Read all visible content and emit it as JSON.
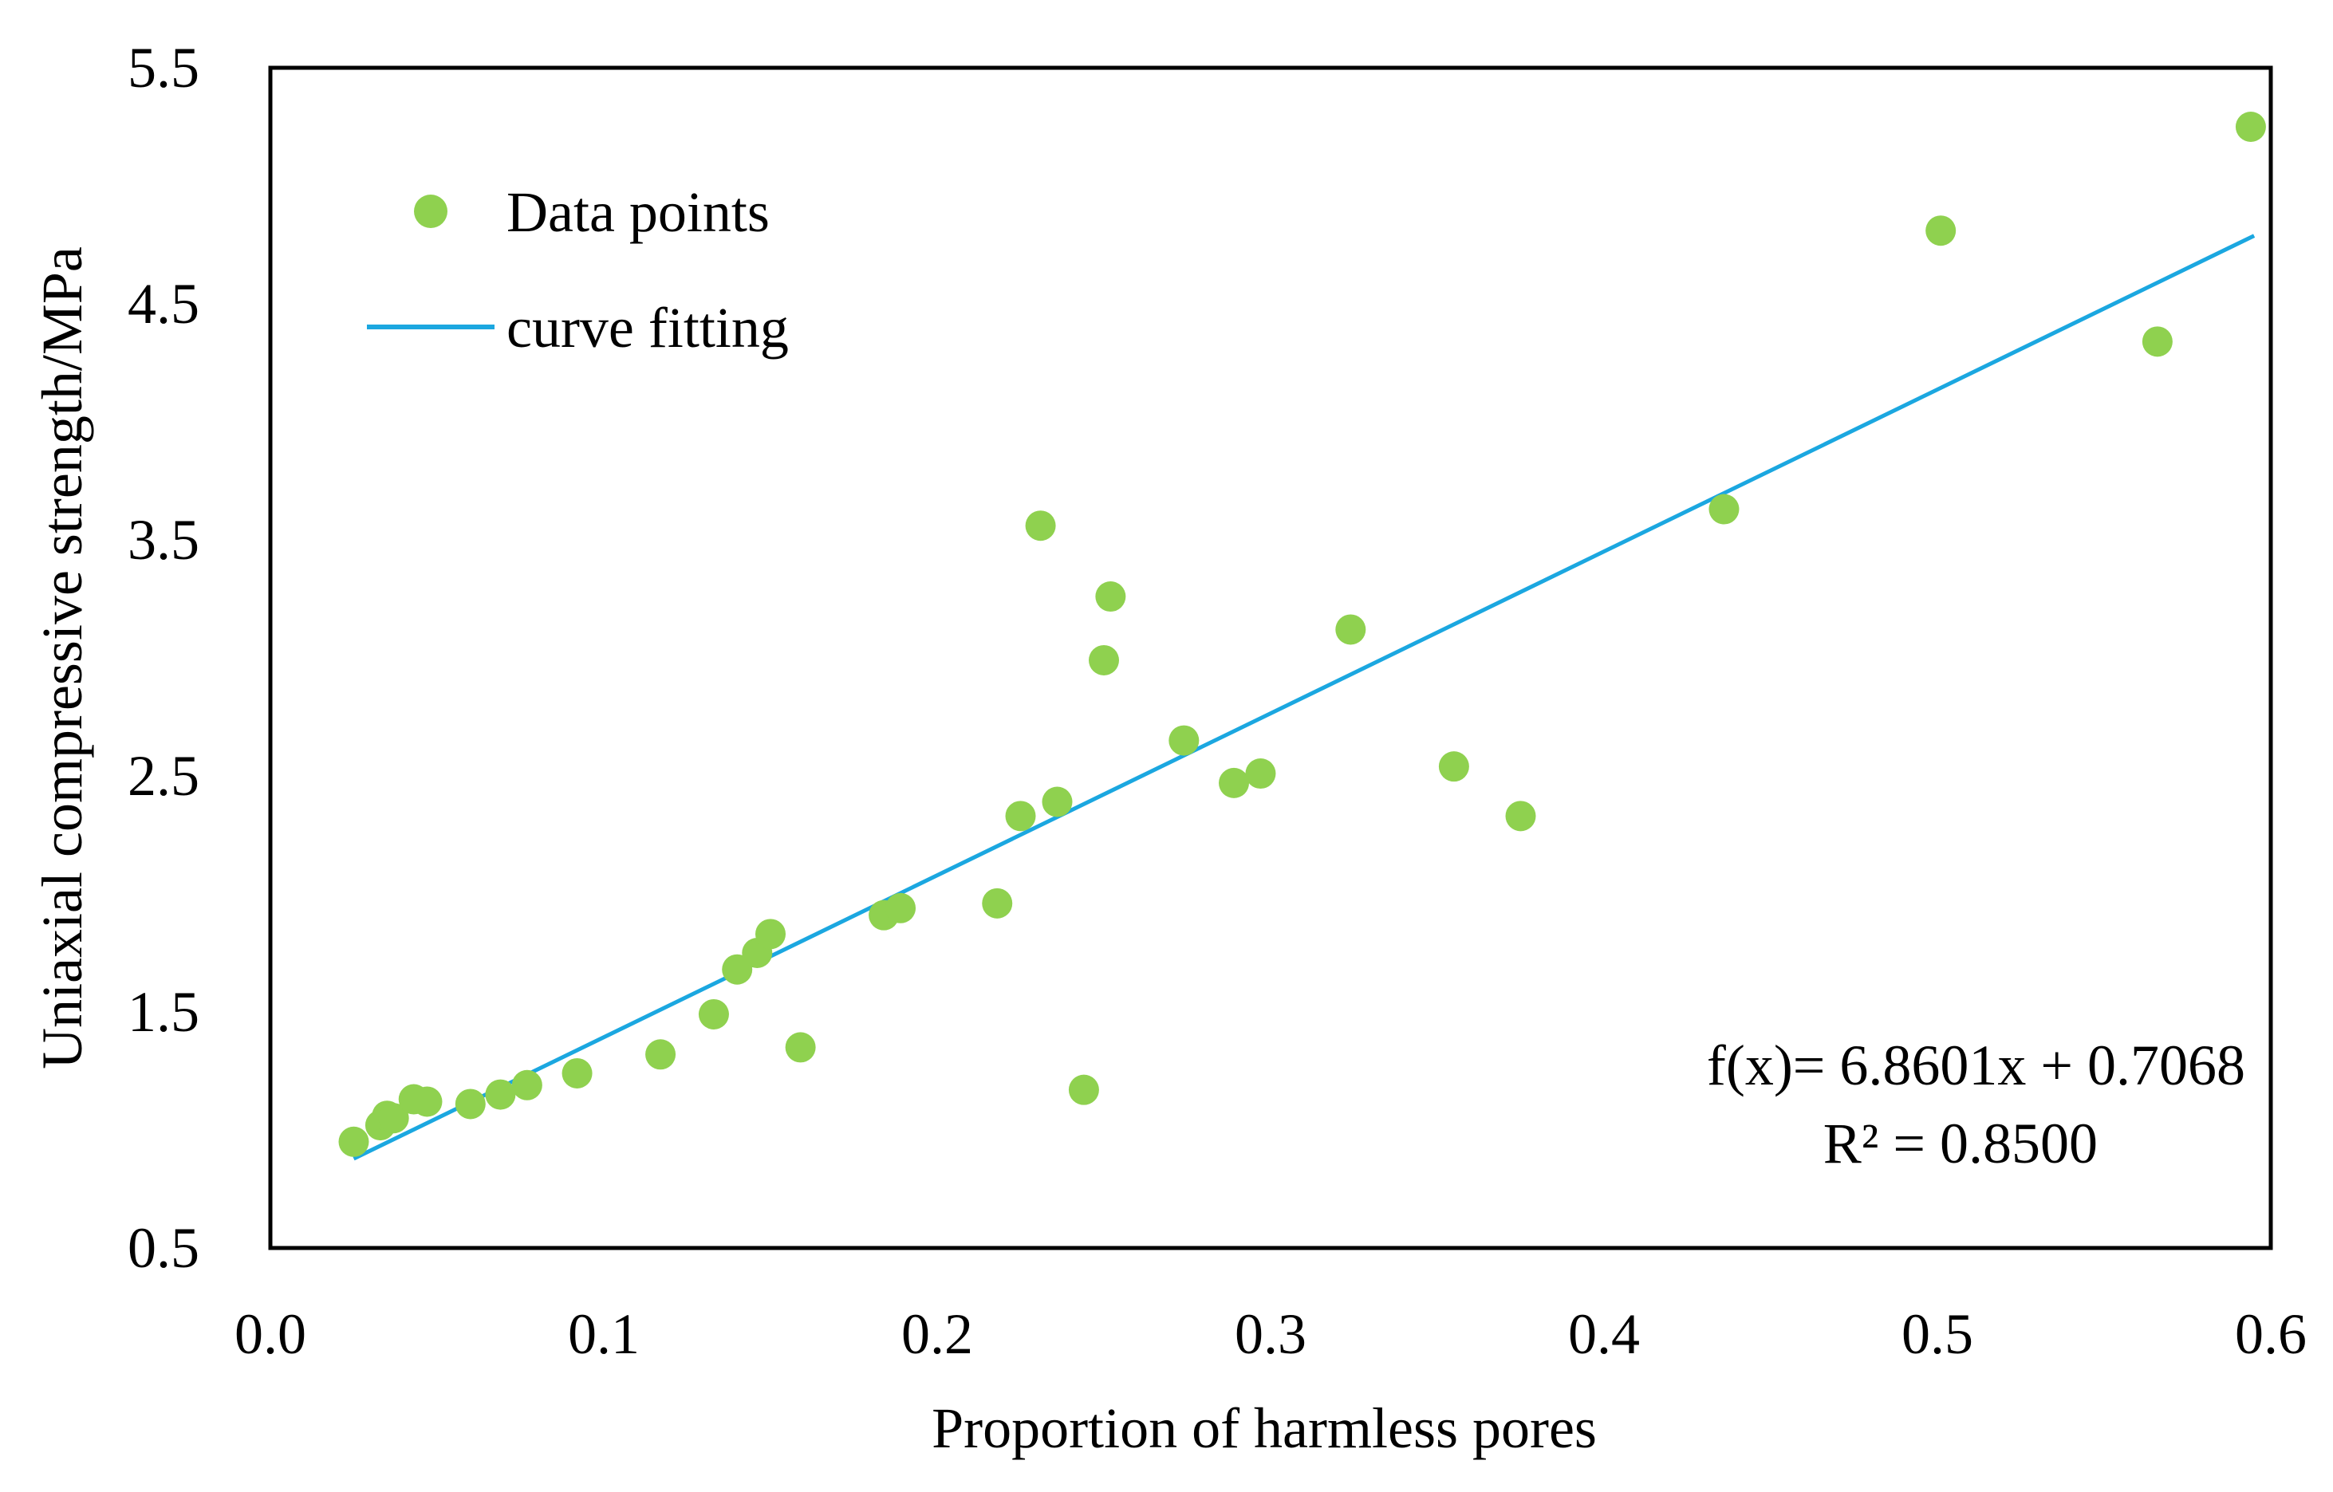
{
  "chart_data": {
    "type": "scatter",
    "title": "",
    "xlabel": "Proportion of harmless pores",
    "ylabel": "Uniaxial compressive strength/MPa",
    "xlim": [
      0.0,
      0.6
    ],
    "ylim": [
      0.5,
      5.5
    ],
    "x_ticks": [
      0.0,
      0.1,
      0.2,
      0.3,
      0.4,
      0.5,
      0.6
    ],
    "x_tick_labels": [
      "0.0",
      "0.1",
      "0.2",
      "0.3",
      "0.4",
      "0.5",
      "0.6"
    ],
    "y_ticks": [
      0.5,
      1.5,
      2.5,
      3.5,
      4.5,
      5.5
    ],
    "y_tick_labels": [
      "0.5",
      "1.5",
      "2.5",
      "3.5",
      "4.5",
      "5.5"
    ],
    "grid": false,
    "legend": {
      "position": "top-left",
      "entries": [
        {
          "label": "Data points",
          "marker": "circle",
          "color": "#8fd14f"
        },
        {
          "label": "curve fitting",
          "marker": "line",
          "color": "#1ba7e0"
        }
      ]
    },
    "series": [
      {
        "name": "Data points",
        "kind": "scatter",
        "color": "#8fd14f",
        "points": [
          {
            "x": 0.025,
            "y": 0.95
          },
          {
            "x": 0.033,
            "y": 1.02
          },
          {
            "x": 0.035,
            "y": 1.06
          },
          {
            "x": 0.037,
            "y": 1.05
          },
          {
            "x": 0.043,
            "y": 1.13
          },
          {
            "x": 0.047,
            "y": 1.12
          },
          {
            "x": 0.06,
            "y": 1.11
          },
          {
            "x": 0.069,
            "y": 1.15
          },
          {
            "x": 0.077,
            "y": 1.19
          },
          {
            "x": 0.092,
            "y": 1.24
          },
          {
            "x": 0.117,
            "y": 1.32
          },
          {
            "x": 0.133,
            "y": 1.49
          },
          {
            "x": 0.14,
            "y": 1.68
          },
          {
            "x": 0.146,
            "y": 1.75
          },
          {
            "x": 0.15,
            "y": 1.83
          },
          {
            "x": 0.159,
            "y": 1.35
          },
          {
            "x": 0.184,
            "y": 1.91
          },
          {
            "x": 0.189,
            "y": 1.94
          },
          {
            "x": 0.218,
            "y": 1.96
          },
          {
            "x": 0.225,
            "y": 2.33
          },
          {
            "x": 0.231,
            "y": 3.56
          },
          {
            "x": 0.236,
            "y": 2.39
          },
          {
            "x": 0.244,
            "y": 1.17
          },
          {
            "x": 0.25,
            "y": 2.99
          },
          {
            "x": 0.252,
            "y": 3.26
          },
          {
            "x": 0.274,
            "y": 2.65
          },
          {
            "x": 0.289,
            "y": 2.47
          },
          {
            "x": 0.297,
            "y": 2.51
          },
          {
            "x": 0.324,
            "y": 3.12
          },
          {
            "x": 0.355,
            "y": 2.54
          },
          {
            "x": 0.375,
            "y": 2.33
          },
          {
            "x": 0.436,
            "y": 3.63
          },
          {
            "x": 0.501,
            "y": 4.81
          },
          {
            "x": 0.566,
            "y": 4.34
          },
          {
            "x": 0.594,
            "y": 5.25
          }
        ]
      },
      {
        "name": "curve fitting",
        "kind": "line",
        "color": "#1ba7e0",
        "slope": 6.8601,
        "intercept": 0.7068,
        "x_range": [
          0.025,
          0.595
        ]
      }
    ],
    "annotations": [
      {
        "text": "f(x)= 6.8601x + 0.7068",
        "position": "bottom-right"
      },
      {
        "text": "R² = 0.8500",
        "position": "bottom-right"
      }
    ]
  }
}
